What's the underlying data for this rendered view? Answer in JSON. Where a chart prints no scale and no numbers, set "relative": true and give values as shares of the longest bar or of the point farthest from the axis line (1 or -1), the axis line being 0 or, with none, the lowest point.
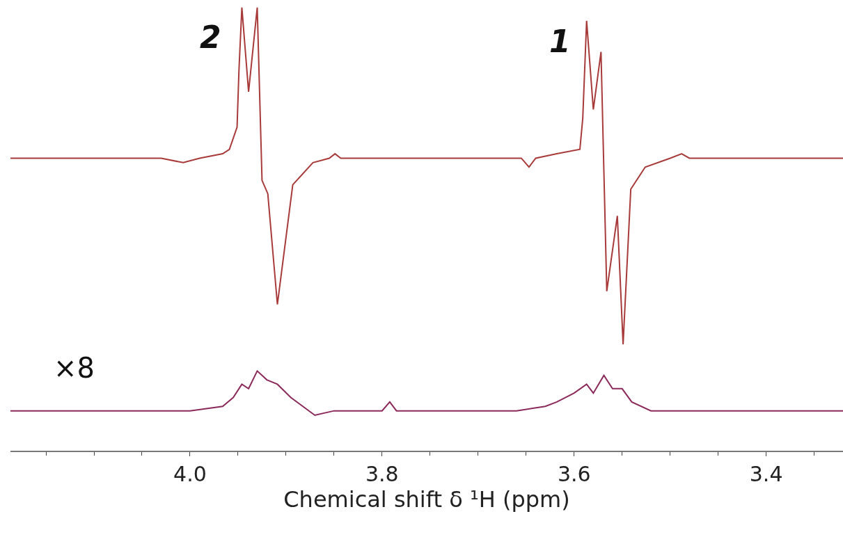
{
  "chart_data": {
    "type": "line",
    "relative": true,
    "xlabel": "Chemical shift δ ¹H (ppm)",
    "xlim": [
      4.187,
      3.32
    ],
    "xticks": [
      {
        "value": 4.0,
        "label": "4.0"
      },
      {
        "value": 3.8,
        "label": "3.8"
      },
      {
        "value": 3.6,
        "label": "3.6"
      },
      {
        "value": 3.4,
        "label": "3.4"
      }
    ],
    "series": [
      {
        "color": "#a83a3a",
        "x": [
          4.187,
          4.1,
          4.03,
          4.007,
          3.99,
          3.966,
          3.959,
          3.951,
          3.949,
          3.946,
          3.939,
          3.93,
          3.925,
          3.919,
          3.909,
          3.893,
          3.872,
          3.855,
          3.849,
          3.843,
          3.8,
          3.7,
          3.655,
          3.647,
          3.64,
          3.618,
          3.594,
          3.591,
          3.587,
          3.58,
          3.572,
          3.566,
          3.555,
          3.549,
          3.541,
          3.526,
          3.5,
          3.488,
          3.48,
          3.4,
          3.32
        ],
        "values": [
          0.66,
          0.66,
          0.66,
          0.65,
          0.66,
          0.67,
          0.68,
          0.73,
          0.86,
          1.0,
          0.81,
          1.0,
          0.61,
          0.58,
          0.33,
          0.6,
          0.65,
          0.66,
          0.67,
          0.66,
          0.66,
          0.66,
          0.66,
          0.64,
          0.66,
          0.67,
          0.68,
          0.75,
          0.97,
          0.77,
          0.9,
          0.36,
          0.53,
          0.24,
          0.59,
          0.64,
          0.66,
          0.67,
          0.66,
          0.66,
          0.66
        ]
      },
      {
        "color": "#8b2a5a",
        "x": [
          4.187,
          4.1,
          4.0,
          3.966,
          3.955,
          3.946,
          3.939,
          3.93,
          3.92,
          3.909,
          3.895,
          3.87,
          3.85,
          3.8,
          3.792,
          3.785,
          3.75,
          3.66,
          3.63,
          3.618,
          3.6,
          3.587,
          3.58,
          3.569,
          3.56,
          3.55,
          3.54,
          3.52,
          3.45,
          3.32
        ],
        "values": [
          0.09,
          0.09,
          0.09,
          0.1,
          0.12,
          0.15,
          0.14,
          0.18,
          0.16,
          0.15,
          0.12,
          0.08,
          0.09,
          0.09,
          0.11,
          0.09,
          0.09,
          0.09,
          0.1,
          0.11,
          0.13,
          0.15,
          0.13,
          0.17,
          0.14,
          0.14,
          0.11,
          0.09,
          0.09,
          0.09
        ]
      }
    ],
    "annotations": [
      "2",
      "1",
      "×8"
    ],
    "grid": false,
    "line_style": "solid",
    "marker": "none"
  }
}
